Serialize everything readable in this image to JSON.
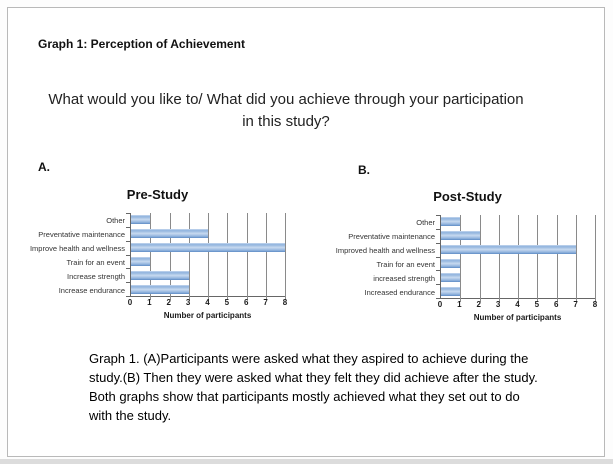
{
  "document": {
    "heading": "Graph 1: Perception of Achievement",
    "question_lines": [
      "What would you like to/ What did you achieve through your participation",
      "in this study?"
    ],
    "panel_a": "A.",
    "panel_b": "B.",
    "caption_lines": [
      "Graph 1. (A)Participants were asked what they aspired to achieve during the",
      "study.(B) Then they were asked what they felt they did achieve after the study.",
      "Both graphs show that participants mostly achieved what they set out to do",
      "with the study."
    ]
  },
  "colors": {
    "bar_light": "#c7d9ef",
    "bar_mid": "#8fb2dd",
    "bar_dark": "#5d8bc4",
    "gridline": "#8a8a8a",
    "axis": "#666666"
  },
  "chart_data": [
    {
      "type": "bar",
      "orientation": "horizontal",
      "panel": "A.",
      "title": "Pre-Study",
      "categories": [
        "Other",
        "Preventative maintenance",
        "Improve health and wellness",
        "Train for an event",
        "Increase strength",
        "Increase endurance"
      ],
      "values": [
        1,
        4,
        8,
        1,
        3,
        3
      ],
      "xlabel": "Number of participants",
      "xlim": [
        0,
        8
      ],
      "xticks": [
        0,
        1,
        2,
        3,
        4,
        5,
        6,
        7,
        8
      ],
      "grid": true,
      "legend": false
    },
    {
      "type": "bar",
      "orientation": "horizontal",
      "panel": "B.",
      "title": "Post-Study",
      "categories": [
        "Other",
        "Preventative maintenance",
        "Improved health and wellness",
        "Train for an event",
        "increased strength",
        "Increased endurance"
      ],
      "values": [
        1,
        2,
        7,
        1,
        1,
        1
      ],
      "xlabel": "Number of participants",
      "xlim": [
        0,
        8
      ],
      "xticks": [
        0,
        1,
        2,
        3,
        4,
        5,
        6,
        7,
        8
      ],
      "grid": true,
      "legend": false
    }
  ]
}
